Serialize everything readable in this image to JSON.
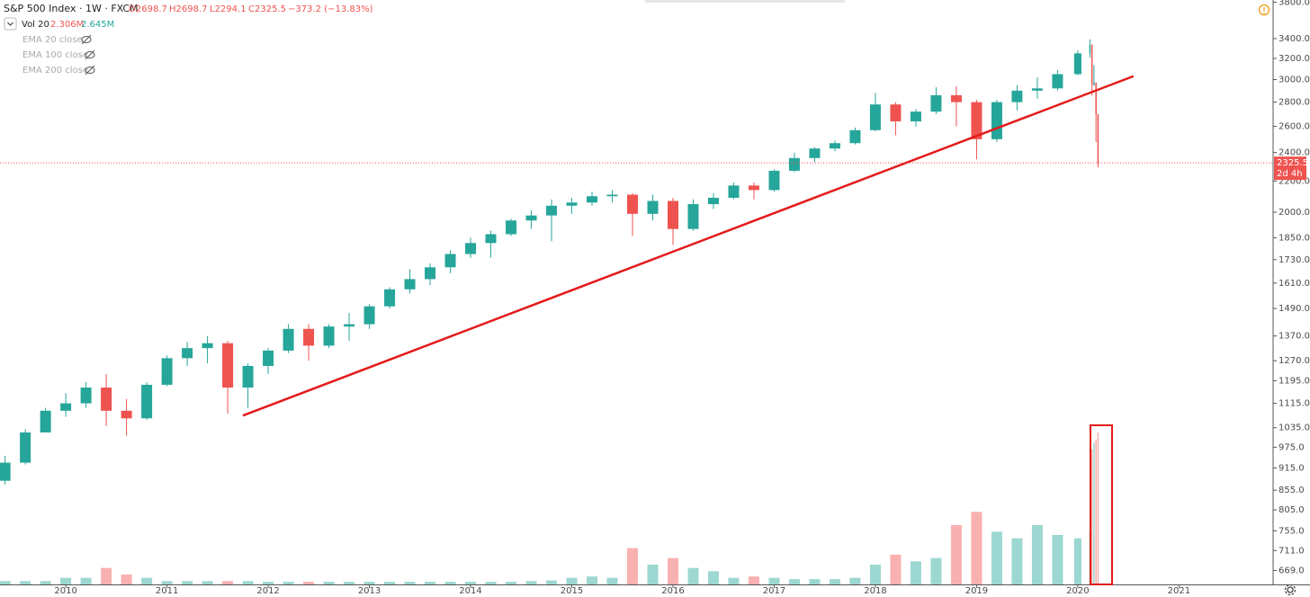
{
  "chart_data": {
    "type": "candlestick",
    "header": {
      "symbol": "S&P 500 Index · 1W · FXCM",
      "open": "O2698.7",
      "high": "H2698.7",
      "low": "L2294.1",
      "close": "C2325.5",
      "change": "−373.2 (−13.83%)"
    },
    "volume_legend": {
      "name": "Vol 20",
      "value": "2.306M",
      "average": "2.645M"
    },
    "indicators": [
      "EMA 20 close",
      "EMA 100 close",
      "EMA 200 close"
    ],
    "countdown": "2d 4h",
    "x": [
      2009.4,
      2009.6,
      2009.8,
      2010.0,
      2010.2,
      2010.4,
      2010.6,
      2010.8,
      2011.0,
      2011.2,
      2011.4,
      2011.6,
      2011.8,
      2012.0,
      2012.2,
      2012.4,
      2012.6,
      2012.8,
      2013.0,
      2013.2,
      2013.4,
      2013.6,
      2013.8,
      2014.0,
      2014.2,
      2014.4,
      2014.6,
      2014.8,
      2015.0,
      2015.2,
      2015.4,
      2015.6,
      2015.8,
      2016.0,
      2016.2,
      2016.4,
      2016.6,
      2016.8,
      2017.0,
      2017.2,
      2017.4,
      2017.6,
      2017.8,
      2018.0,
      2018.2,
      2018.4,
      2018.6,
      2018.8,
      2019.0,
      2019.2,
      2019.4,
      2019.6,
      2019.8,
      2020.0,
      2020.12,
      2020.14,
      2020.16,
      2020.18,
      2020.2
    ],
    "open": [
      880,
      930,
      1020,
      1090,
      1115,
      1170,
      1090,
      1065,
      1180,
      1280,
      1320,
      1340,
      1170,
      1250,
      1310,
      1400,
      1330,
      1410,
      1420,
      1500,
      1580,
      1630,
      1690,
      1760,
      1820,
      1870,
      1950,
      1980,
      2040,
      2060,
      2100,
      2110,
      1990,
      2070,
      1900,
      2050,
      2090,
      2170,
      2140,
      2270,
      2360,
      2430,
      2470,
      2570,
      2780,
      2640,
      2720,
      2860,
      2800,
      2500,
      2800,
      2900,
      2920,
      3050,
      3250,
      3337,
      2954,
      2972,
      2698.7
    ],
    "high": [
      950,
      1030,
      1100,
      1150,
      1190,
      1220,
      1130,
      1190,
      1290,
      1345,
      1370,
      1350,
      1260,
      1320,
      1420,
      1420,
      1420,
      1470,
      1510,
      1590,
      1680,
      1710,
      1780,
      1850,
      1890,
      1960,
      2010,
      2080,
      2090,
      2130,
      2140,
      2120,
      2110,
      2090,
      2080,
      2120,
      2190,
      2190,
      2280,
      2400,
      2440,
      2490,
      2590,
      2880,
      2800,
      2740,
      2930,
      2940,
      2820,
      2820,
      2950,
      3020,
      3090,
      3280,
      3393,
      3340,
      3136,
      2972,
      2698.7
    ],
    "low": [
      870,
      925,
      1020,
      1070,
      1100,
      1040,
      1010,
      1060,
      1175,
      1250,
      1260,
      1080,
      1100,
      1220,
      1300,
      1270,
      1320,
      1350,
      1400,
      1490,
      1560,
      1600,
      1660,
      1740,
      1740,
      1860,
      1900,
      1830,
      1990,
      2040,
      2060,
      1860,
      1950,
      1810,
      1890,
      2020,
      2080,
      2080,
      2130,
      2260,
      2330,
      2410,
      2460,
      2560,
      2530,
      2600,
      2700,
      2600,
      2350,
      2480,
      2730,
      2830,
      2900,
      3040,
      3210,
      2855,
      2940,
      2478,
      2294.1
    ],
    "close": [
      930,
      1020,
      1090,
      1115,
      1170,
      1090,
      1065,
      1180,
      1280,
      1320,
      1340,
      1170,
      1250,
      1310,
      1400,
      1330,
      1410,
      1420,
      1500,
      1580,
      1630,
      1690,
      1760,
      1820,
      1870,
      1950,
      1980,
      2040,
      2060,
      2100,
      2110,
      1990,
      2070,
      1900,
      2050,
      2090,
      2170,
      2140,
      2270,
      2360,
      2430,
      2470,
      2570,
      2780,
      2640,
      2720,
      2860,
      2800,
      2500,
      2800,
      2900,
      2920,
      3050,
      3250,
      3337,
      2954,
      2972,
      2698.7,
      2325.5
    ],
    "volume": [
      0.05,
      0.05,
      0.05,
      0.1,
      0.1,
      0.25,
      0.15,
      0.1,
      0.05,
      0.05,
      0.05,
      0.05,
      0.05,
      0.04,
      0.04,
      0.04,
      0.04,
      0.04,
      0.04,
      0.04,
      0.04,
      0.04,
      0.04,
      0.04,
      0.04,
      0.04,
      0.05,
      0.06,
      0.1,
      0.12,
      0.1,
      0.55,
      0.3,
      0.4,
      0.25,
      0.2,
      0.1,
      0.12,
      0.1,
      0.08,
      0.08,
      0.08,
      0.1,
      0.3,
      0.45,
      0.35,
      0.4,
      0.9,
      1.1,
      0.8,
      0.7,
      0.9,
      0.75,
      0.7,
      0.8,
      2.05,
      2.15,
      2.2,
      2.306
    ],
    "up_color": "#26a69a",
    "down_color": "#ef5350",
    "xlim": [
      2009.35,
      2021.93
    ],
    "xticks": [
      2010,
      2011,
      2012,
      2013,
      2014,
      2015,
      2016,
      2017,
      2018,
      2019,
      2020,
      2021
    ],
    "ylim": [
      641,
      3826
    ],
    "log_scale": true,
    "yticks": [
      {
        "value": 669,
        "label": "669.0"
      },
      {
        "value": 711,
        "label": "711.0"
      },
      {
        "value": 755,
        "label": "755.0"
      },
      {
        "value": 805,
        "label": "805.0"
      },
      {
        "value": 855,
        "label": "855.0"
      },
      {
        "value": 915,
        "label": "915.0"
      },
      {
        "value": 975,
        "label": "975.0"
      },
      {
        "value": 1035,
        "label": "1035.0"
      },
      {
        "value": 1115,
        "label": "1115.0"
      },
      {
        "value": 1195,
        "label": "1195.0"
      },
      {
        "value": 1270,
        "label": "1270.0"
      },
      {
        "value": 1370,
        "label": "1370.0"
      },
      {
        "value": 1490,
        "label": "1490.0"
      },
      {
        "value": 1610,
        "label": "1610.0"
      },
      {
        "value": 1730,
        "label": "1730.0"
      },
      {
        "value": 1850,
        "label": "1850.0"
      },
      {
        "value": 2000,
        "label": "2000.0"
      },
      {
        "value": 2200,
        "label": "2200.0"
      },
      {
        "value": 2400,
        "label": "2400.0"
      },
      {
        "value": 2600,
        "label": "2600.0"
      },
      {
        "value": 2800,
        "label": "2800.0"
      },
      {
        "value": 3000,
        "label": "3000.0"
      },
      {
        "value": 3200,
        "label": "3200.0"
      },
      {
        "value": 3400,
        "label": "3400.0"
      },
      {
        "value": 3800,
        "label": "3800.0"
      }
    ],
    "y2lim": [
      0,
      3
    ],
    "trendline": {
      "x": [
        2011.75,
        2020.55
      ],
      "y": [
        1074,
        3031
      ],
      "color": "#e31b1b"
    }
  }
}
